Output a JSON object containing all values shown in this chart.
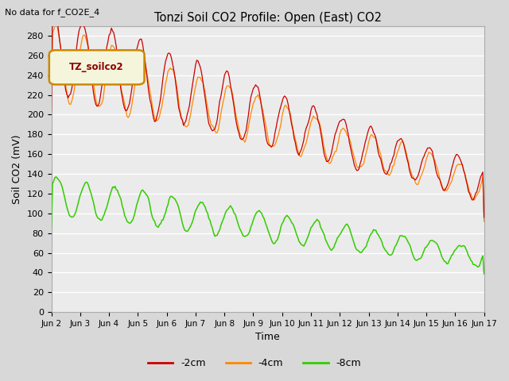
{
  "title": "Tonzi Soil CO2 Profile: Open (East) CO2",
  "subtitle": "No data for f_CO2E_4",
  "ylabel": "Soil CO2 (mV)",
  "xlabel": "Time",
  "legend_label": "TZ_soilco2",
  "series_labels": [
    "-2cm",
    "-4cm",
    "-8cm"
  ],
  "series_colors": [
    "#cc0000",
    "#ff8800",
    "#33cc00"
  ],
  "ylim": [
    0,
    290
  ],
  "yticks": [
    0,
    20,
    40,
    60,
    80,
    100,
    120,
    140,
    160,
    180,
    200,
    220,
    240,
    260,
    280
  ],
  "xtick_labels": [
    "Jun 2",
    "Jun 3",
    "Jun 4",
    "Jun 5",
    "Jun 6",
    "Jun 7",
    "Jun 8",
    "Jun 9",
    "Jun 10",
    "Jun 11",
    "Jun 12",
    "Jun 13",
    "Jun 14",
    "Jun 15",
    "Jun 16",
    "Jun 17"
  ],
  "background_color": "#d8d8d8",
  "plot_bg_color": "#ebebeb",
  "grid_color": "#ffffff",
  "legend_box_facecolor": "#f5f5dc",
  "legend_box_edgecolor": "#cc8800",
  "legend_text_color": "#8b0000",
  "figsize": [
    6.4,
    4.8
  ],
  "dpi": 100
}
